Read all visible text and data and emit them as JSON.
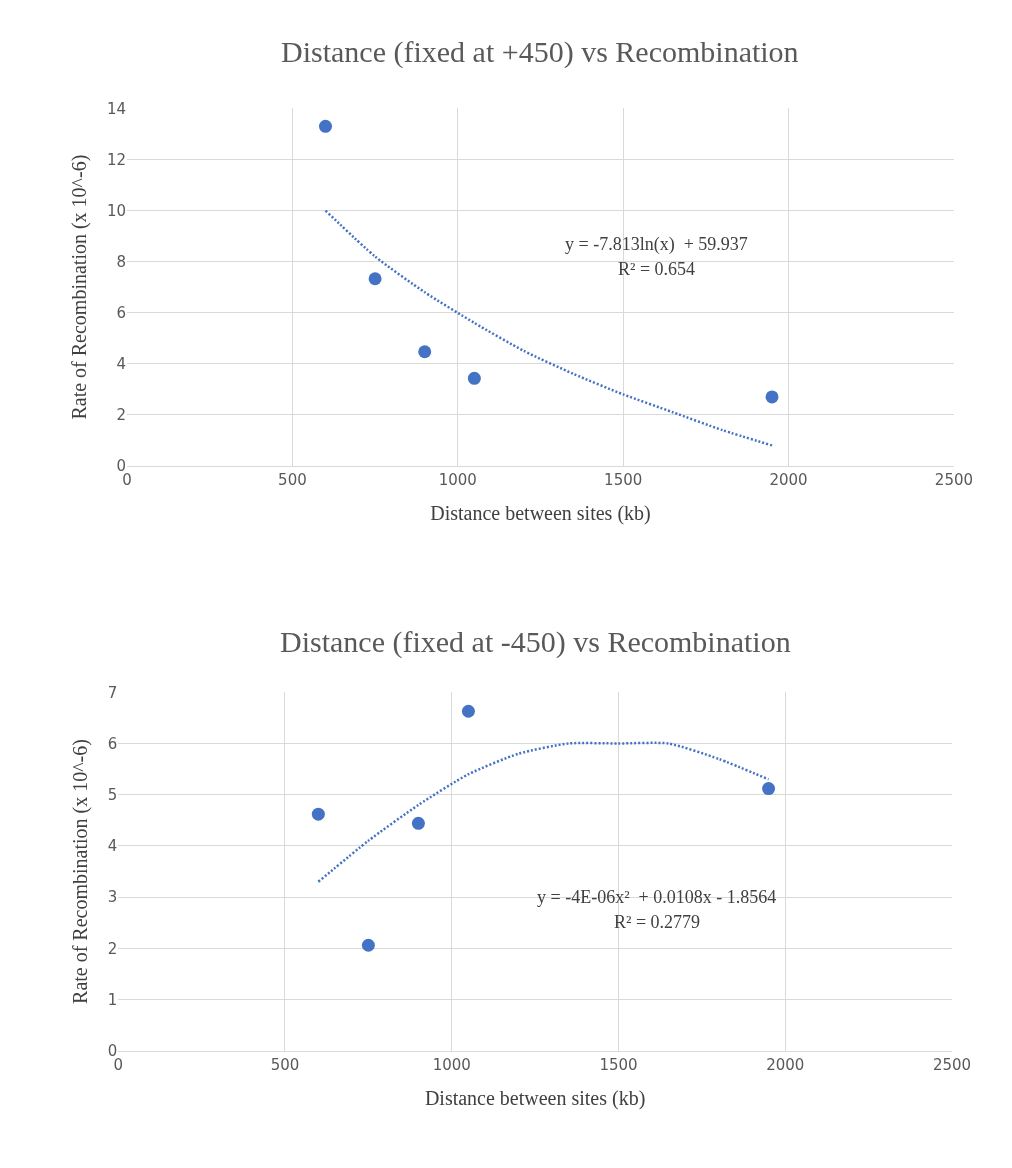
{
  "chart_data": [
    {
      "type": "scatter",
      "title": "Distance (fixed at +450) vs Recombination",
      "xlabel": "Distance between sites (kb)",
      "ylabel": "Rate of Recombination (x 10^-6)",
      "series": [
        {
          "color": "#4472c4",
          "marker": "circle",
          "x": [
            600,
            750,
            900,
            1050,
            1950
          ],
          "values": [
            13.3,
            7.33,
            4.47,
            3.43,
            2.7
          ]
        },
        {
          "type": "line",
          "color": "#4472c4",
          "marker": "none",
          "line_style": "dotted",
          "x": [
            600,
            750,
            900,
            1050,
            1200,
            1350,
            1500,
            1650,
            1800,
            1950
          ],
          "values": [
            10.0,
            8.2,
            6.8,
            5.6,
            4.5,
            3.6,
            2.8,
            2.1,
            1.4,
            0.8
          ]
        }
      ],
      "annotations": [
        "y = -7.813ln(x)  + 59.937",
        "R² = 0.654"
      ],
      "xlim": [
        0,
        2500
      ],
      "xticks": [
        0,
        500,
        1000,
        1500,
        2000,
        2500
      ],
      "ylim": [
        0,
        14
      ],
      "yticks": [
        0,
        2,
        4,
        6,
        8,
        10,
        12,
        14
      ],
      "grid": true
    },
    {
      "type": "scatter",
      "title": "Distance (fixed at -450) vs Recombination",
      "xlabel": "Distance between sites (kb)",
      "ylabel": "Rate of Recombination (x 10^-6)",
      "series": [
        {
          "color": "#4472c4",
          "marker": "circle",
          "x": [
            600,
            750,
            900,
            1050,
            1950
          ],
          "values": [
            4.62,
            2.06,
            4.44,
            6.63,
            5.12
          ]
        },
        {
          "type": "line",
          "color": "#4472c4",
          "marker": "none",
          "line_style": "dotted",
          "x": [
            600,
            750,
            900,
            1050,
            1200,
            1350,
            1500,
            1650,
            1800,
            1950
          ],
          "values": [
            3.3,
            4.1,
            4.8,
            5.4,
            5.8,
            6.0,
            6.0,
            6.0,
            5.7,
            5.3
          ]
        }
      ],
      "annotations": [
        "y = -4E-06x²  + 0.0108x - 1.8564",
        "R² = 0.2779"
      ],
      "xlim": [
        0,
        2500
      ],
      "xticks": [
        0,
        500,
        1000,
        1500,
        2000,
        2500
      ],
      "ylim": [
        0,
        7
      ],
      "yticks": [
        0,
        1,
        2,
        3,
        4,
        5,
        6,
        7
      ],
      "grid": true
    }
  ]
}
